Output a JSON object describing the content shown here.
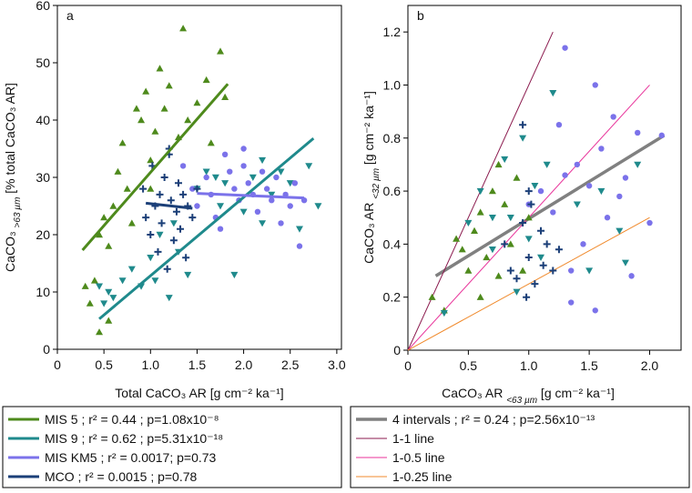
{
  "chart_data": [
    {
      "type": "scatter",
      "panel_label": "a",
      "xlabel": [
        {
          "text": "Total CaCO₃ AR [g cm⁻² ka⁻¹]"
        }
      ],
      "ylabel": [
        {
          "text": "CaCO₃ "
        },
        {
          "text": ">63 µm",
          "sub": true
        },
        {
          "text": " [% total CaCO₃ AR]"
        }
      ],
      "xlim": [
        0,
        3.05
      ],
      "ylim": [
        0,
        60
      ],
      "xticks": [
        0,
        0.5,
        {
          "value": 1,
          "label": "1.0"
        },
        1.5,
        {
          "value": 2,
          "label": "2.0"
        },
        2.5,
        {
          "value": 3,
          "label": "3.0"
        }
      ],
      "yticks": [
        0,
        10,
        20,
        30,
        40,
        50,
        60
      ],
      "series": [
        {
          "name": "MIS 5 ; r² = 0.44 ; p=1.08x10⁻⁸",
          "color": "#4e8a1c",
          "marker": "triangle-up",
          "x": [
            0.3,
            0.35,
            0.4,
            0.45,
            0.5,
            0.55,
            0.6,
            0.65,
            0.7,
            0.75,
            0.8,
            0.85,
            0.9,
            0.95,
            1.0,
            1.05,
            1.1,
            1.15,
            1.2,
            1.3,
            1.35,
            1.4,
            1.5,
            1.6,
            1.65,
            1.75,
            1.8,
            0.55,
            0.45,
            1.0
          ],
          "y": [
            11,
            8,
            12,
            20,
            23,
            18,
            25,
            31,
            36,
            28,
            22,
            42,
            40,
            45,
            33,
            38,
            49,
            42,
            46,
            37,
            56,
            40,
            43,
            47,
            36,
            52,
            44,
            5,
            3,
            28
          ],
          "fit": {
            "x": [
              0.27,
              1.83
            ],
            "y": [
              17.3,
              46.3
            ]
          }
        },
        {
          "name": "MIS 9 ; r² = 0.62 ; p=5.31x10⁻¹⁸",
          "color": "#1f8a8c",
          "marker": "triangle-down",
          "x": [
            0.45,
            0.5,
            0.55,
            0.6,
            0.7,
            0.8,
            0.9,
            1.0,
            1.05,
            1.1,
            1.2,
            1.25,
            1.3,
            1.4,
            1.5,
            1.6,
            1.7,
            1.75,
            1.8,
            2.0,
            2.1,
            2.2,
            2.3,
            2.4,
            2.5,
            2.6,
            2.7,
            2.8,
            1.9,
            2.2
          ],
          "y": [
            11,
            8,
            10,
            9,
            12,
            14,
            11,
            16,
            12,
            20,
            9,
            22,
            17,
            13,
            28,
            31,
            30,
            25,
            29,
            24,
            30,
            22,
            27,
            31,
            29,
            21,
            32,
            25,
            13,
            33
          ],
          "fit": {
            "x": [
              0.45,
              2.75
            ],
            "y": [
              5.3,
              36.8
            ]
          }
        },
        {
          "name": "MIS KM5 ; r² = 0.0017; p=0.73",
          "color": "#7b72ea",
          "marker": "circle",
          "x": [
            1.35,
            1.45,
            1.5,
            1.6,
            1.65,
            1.7,
            1.8,
            1.85,
            1.9,
            1.95,
            2.0,
            2.05,
            2.1,
            2.15,
            2.2,
            2.25,
            2.3,
            2.35,
            2.4,
            2.45,
            2.5,
            2.55,
            2.6,
            2.65,
            1.75,
            2.0
          ],
          "y": [
            32,
            28,
            25,
            30,
            27,
            23,
            34,
            31,
            28,
            26,
            35,
            29,
            27,
            24,
            31,
            28,
            26,
            30,
            22,
            27,
            25,
            29,
            18,
            26,
            21,
            32
          ],
          "fit": {
            "x": [
              1.5,
              2.65
            ],
            "y": [
              27.2,
              26.4
            ]
          }
        },
        {
          "name": "MCO ; r² = 0.0015 ; p=0.78",
          "color": "#1b3f78",
          "marker": "plus",
          "x": [
            0.92,
            0.95,
            1.0,
            1.02,
            1.05,
            1.08,
            1.1,
            1.12,
            1.15,
            1.18,
            1.2,
            1.22,
            1.25,
            1.28,
            1.3,
            1.32,
            1.35,
            1.38,
            1.4,
            1.45,
            1.5,
            1.2
          ],
          "y": [
            28,
            23,
            20,
            32,
            25,
            17,
            27,
            22,
            30,
            14,
            34,
            26,
            19,
            24,
            29,
            21,
            27,
            16,
            25,
            23,
            28,
            35
          ],
          "fit": {
            "x": [
              0.95,
              1.45
            ],
            "y": [
              25.5,
              24.6
            ]
          }
        }
      ],
      "lines": []
    },
    {
      "type": "scatter",
      "panel_label": "b",
      "xlabel": [
        {
          "text": "CaCO₃ AR "
        },
        {
          "text": "<63 µm",
          "sub": true
        },
        {
          "text": " [g cm⁻² ka⁻¹]"
        }
      ],
      "ylabel": [
        {
          "text": "CaCO₃ AR "
        },
        {
          "text": "<32 µm",
          "sub": true
        },
        {
          "text": " [g cm⁻² ka⁻¹]"
        }
      ],
      "xlim": [
        0,
        2.26
      ],
      "ylim": [
        0,
        1.3
      ],
      "xticks": [
        0,
        0.5,
        {
          "value": 1,
          "label": "1.0"
        },
        1.5,
        {
          "value": 2,
          "label": "2.0"
        }
      ],
      "yticks": [
        0,
        0.2,
        0.4,
        0.6,
        0.8,
        {
          "value": 1,
          "label": "1.0"
        },
        1.2
      ],
      "series": [
        {
          "color": "#4e8a1c",
          "marker": "triangle-up",
          "x": [
            0.2,
            0.3,
            0.4,
            0.5,
            0.55,
            0.6,
            0.65,
            0.7,
            0.75,
            0.8,
            0.85,
            0.9,
            0.95,
            1.0,
            0.75,
            0.6,
            0.45
          ],
          "y": [
            0.2,
            0.15,
            0.42,
            0.3,
            0.45,
            0.52,
            0.35,
            0.6,
            0.28,
            0.55,
            0.4,
            0.65,
            0.3,
            0.5,
            0.7,
            0.2,
            0.38
          ]
        },
        {
          "color": "#1f8a8c",
          "marker": "triangle-down",
          "x": [
            0.3,
            0.5,
            0.6,
            0.7,
            0.8,
            0.85,
            0.9,
            0.95,
            1.0,
            1.05,
            1.1,
            1.15,
            1.2,
            1.4,
            1.5,
            1.6,
            1.75,
            1.9,
            1.8,
            0.7
          ],
          "y": [
            0.14,
            0.48,
            0.6,
            0.38,
            0.72,
            0.5,
            0.22,
            0.8,
            0.42,
            0.62,
            0.35,
            0.7,
            0.97,
            0.55,
            0.3,
            0.6,
            0.45,
            0.7,
            0.33,
            0.5
          ]
        },
        {
          "color": "#7b72ea",
          "marker": "circle",
          "x": [
            1.0,
            1.1,
            1.2,
            1.25,
            1.3,
            1.35,
            1.4,
            1.45,
            1.5,
            1.55,
            1.6,
            1.65,
            1.7,
            1.75,
            1.8,
            1.85,
            1.9,
            2.0,
            2.1,
            1.35,
            1.55,
            1.3
          ],
          "y": [
            0.55,
            0.6,
            0.52,
            0.85,
            1.14,
            0.3,
            0.7,
            0.4,
            0.62,
            1.0,
            0.76,
            0.5,
            0.88,
            0.58,
            0.65,
            0.28,
            0.82,
            0.48,
            0.81,
            0.18,
            0.15,
            0.66
          ]
        },
        {
          "color": "#1b3f78",
          "marker": "plus",
          "x": [
            0.8,
            0.85,
            0.9,
            0.95,
            0.98,
            1.0,
            1.02,
            1.05,
            1.1,
            1.12,
            1.15,
            1.2,
            1.25,
            0.95,
            1.0
          ],
          "y": [
            0.4,
            0.3,
            0.27,
            0.48,
            0.2,
            0.35,
            0.55,
            0.25,
            0.45,
            0.32,
            0.4,
            0.3,
            0.38,
            0.85,
            0.6
          ]
        }
      ],
      "lines": [
        {
          "name": "4 intervals ; r² = 0.24 ; p=2.56x10⁻¹³",
          "color": "#808080",
          "width": 3.5,
          "x": [
            0.23,
            2.12
          ],
          "y": [
            0.28,
            0.81
          ]
        },
        {
          "name": "1-1 line",
          "color": "#8b1a4e",
          "width": 1,
          "x": [
            0,
            1.2
          ],
          "y": [
            0,
            1.2
          ]
        },
        {
          "name": "1-0.5 line",
          "color": "#e8339a",
          "width": 1,
          "x": [
            0,
            2
          ],
          "y": [
            0,
            1
          ]
        },
        {
          "name": "1-0.25 line",
          "color": "#f08a2c",
          "width": 1,
          "x": [
            0,
            2
          ],
          "y": [
            0,
            0.5
          ]
        }
      ]
    }
  ]
}
